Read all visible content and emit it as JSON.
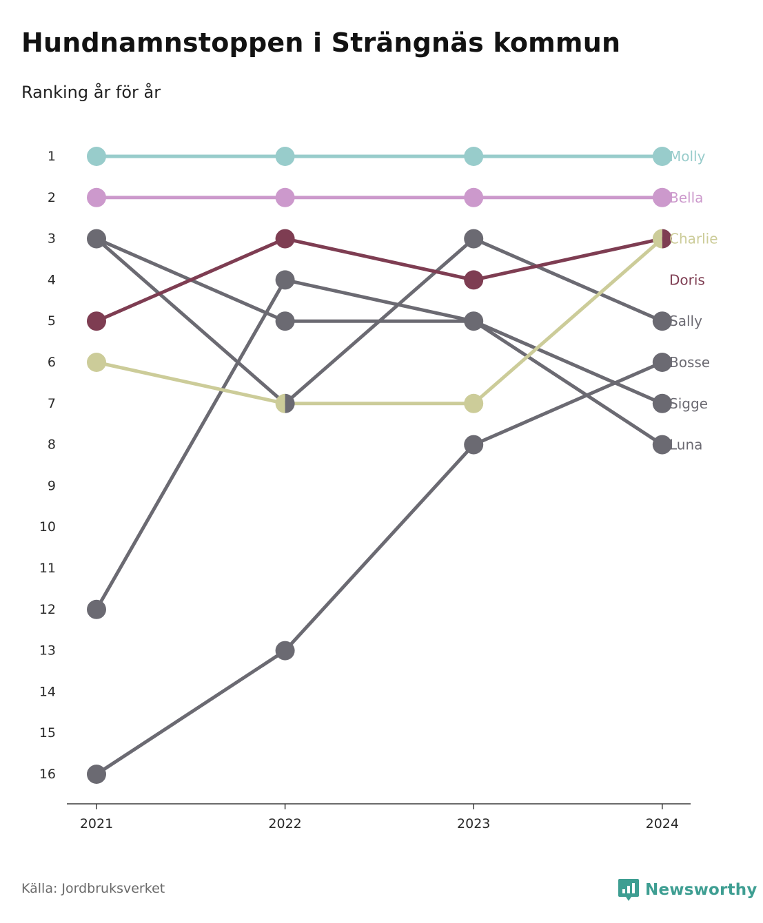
{
  "title": "Hundnamnstoppen i Strängnäs kommun",
  "subtitle": "Ranking år för år",
  "source": "Källa: Jordbruksverket",
  "brand": {
    "name": "Newsworthy",
    "color": "#3e9e92",
    "icon": "newsworthy-logo-icon"
  },
  "colors": {
    "Molly": "#98cccb",
    "Bella": "#cc99cc",
    "Charlie": "#cccc99",
    "Doris": "#7e3d52",
    "other": "#6b6a72"
  },
  "chart_data": {
    "type": "line",
    "subtype": "bump",
    "x": [
      "2021",
      "2022",
      "2023",
      "2024"
    ],
    "y_ticks": [
      1,
      2,
      3,
      4,
      5,
      6,
      7,
      8,
      9,
      10,
      11,
      12,
      13,
      14,
      15,
      16
    ],
    "ylim": [
      1,
      16
    ],
    "y_reversed": true,
    "grid": false,
    "legend": "labels at line ends",
    "series": [
      {
        "name": "Molly",
        "values": [
          1,
          1,
          1,
          1
        ],
        "color": "#98cccb"
      },
      {
        "name": "Bella",
        "values": [
          2,
          2,
          2,
          2
        ],
        "color": "#cc99cc"
      },
      {
        "name": "Charlie",
        "values": [
          6,
          7,
          7,
          3
        ],
        "color": "#cccc99"
      },
      {
        "name": "Doris",
        "values": [
          5,
          3,
          4,
          3
        ],
        "color": "#7e3d52"
      },
      {
        "name": "Sally",
        "values": [
          3,
          7,
          3,
          5
        ],
        "color": "#6b6a72"
      },
      {
        "name": "Bosse",
        "values": [
          16,
          13,
          8,
          6
        ],
        "color": "#6b6a72"
      },
      {
        "name": "Sigge",
        "values": [
          3,
          5,
          5,
          7
        ],
        "color": "#6b6a72"
      },
      {
        "name": "Luna",
        "values": [
          12,
          4,
          5,
          8
        ],
        "color": "#6b6a72"
      }
    ],
    "end_labels": [
      {
        "name": "Molly",
        "rank": 1
      },
      {
        "name": "Bella",
        "rank": 2
      },
      {
        "name": "Charlie",
        "rank": 3
      },
      {
        "name": "Doris",
        "rank": 4
      },
      {
        "name": "Sally",
        "rank": 5
      },
      {
        "name": "Bosse",
        "rank": 6
      },
      {
        "name": "Sigge",
        "rank": 7
      },
      {
        "name": "Luna",
        "rank": 8
      }
    ]
  }
}
